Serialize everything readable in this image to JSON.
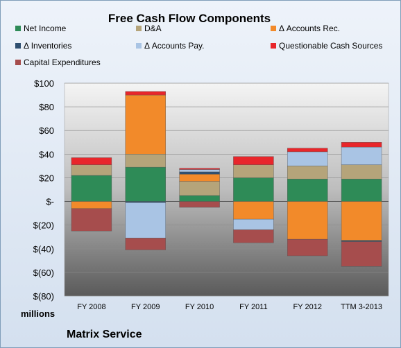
{
  "chart_data": {
    "type": "bar",
    "stacked": true,
    "title": "Free Cash Flow Components",
    "ylabel": "millions",
    "company": "Matrix Service",
    "categories": [
      "FY 2008",
      "FY 2009",
      "FY 2010",
      "FY 2011",
      "FY 2012",
      "TTM 3-2013"
    ],
    "ylim": [
      -80,
      100
    ],
    "yticks": [
      -80,
      -60,
      -40,
      -20,
      0,
      20,
      40,
      60,
      80,
      100
    ],
    "ytick_labels": [
      "$(80)",
      "$(60)",
      "$(40)",
      "$(20)",
      "$-",
      "$20",
      "$40",
      "$60",
      "$80",
      "$100"
    ],
    "legend_placement": "top",
    "grid": true,
    "series": [
      {
        "name": "Net Income",
        "color": "#2e8b57",
        "values": [
          22,
          29,
          5,
          20,
          19,
          19
        ]
      },
      {
        "name": "D&A",
        "color": "#b5a47a",
        "values": [
          9,
          11,
          12,
          11,
          11,
          12
        ]
      },
      {
        "name": "Δ Accounts Rec.",
        "color": "#f28a2a",
        "values": [
          -6,
          50,
          6,
          -15,
          -32,
          -33
        ]
      },
      {
        "name": "Δ Inventories",
        "color": "#2f4f70",
        "values": [
          0,
          -1,
          2,
          0,
          0,
          -1
        ]
      },
      {
        "name": "Δ Accounts Pay.",
        "color": "#a9c4e4",
        "values": [
          0,
          -30,
          2,
          -9,
          12,
          15
        ]
      },
      {
        "name": "Questionable Cash Sources",
        "color": "#e8262b",
        "values": [
          6,
          3,
          1,
          7,
          3,
          4
        ]
      },
      {
        "name": "Capital Expenditures",
        "color": "#a64d4d",
        "values": [
          -19,
          -10,
          -5,
          -11,
          -14,
          -21
        ]
      }
    ]
  }
}
